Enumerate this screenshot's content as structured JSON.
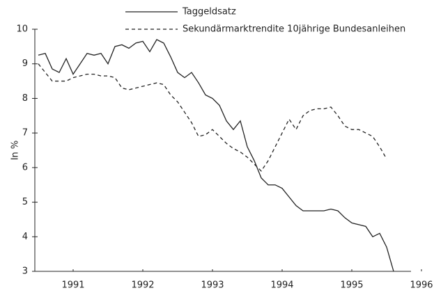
{
  "chart_data": {
    "type": "line",
    "ylabel": "In %",
    "x": [
      1990.5,
      1990.6,
      1990.7,
      1990.8,
      1990.9,
      1991.0,
      1991.1,
      1991.2,
      1991.3,
      1991.4,
      1991.5,
      1991.6,
      1991.7,
      1991.8,
      1991.9,
      1992.0,
      1992.1,
      1992.2,
      1992.3,
      1992.4,
      1992.5,
      1992.6,
      1992.7,
      1992.8,
      1992.9,
      1993.0,
      1993.1,
      1993.2,
      1993.3,
      1993.4,
      1993.5,
      1993.6,
      1993.7,
      1993.8,
      1993.9,
      1994.0,
      1994.1,
      1994.2,
      1994.3,
      1994.4,
      1994.5,
      1994.6,
      1994.7,
      1994.8,
      1994.9,
      1995.0,
      1995.1,
      1995.2,
      1995.3,
      1995.4,
      1995.5,
      1995.6
    ],
    "series": [
      {
        "name": "Taggeldsatz",
        "color": "#222222",
        "dash": false,
        "values": [
          9.25,
          9.3,
          8.85,
          8.75,
          9.15,
          8.7,
          9.0,
          9.3,
          9.25,
          9.3,
          9.0,
          9.5,
          9.55,
          9.45,
          9.6,
          9.65,
          9.35,
          9.7,
          9.6,
          9.2,
          8.75,
          8.6,
          8.75,
          8.45,
          8.1,
          8.0,
          7.8,
          7.35,
          7.1,
          7.35,
          6.6,
          6.2,
          5.7,
          5.5,
          5.5,
          5.4,
          5.15,
          4.9,
          4.75,
          4.75,
          4.75,
          4.75,
          4.8,
          4.75,
          4.55,
          4.4,
          4.35,
          4.3,
          4.0,
          4.1,
          3.7,
          3.0
        ]
      },
      {
        "name": "Sekundärmarktrendite 10jährige Bundesanleihen",
        "color": "#222222",
        "dash": true,
        "values": [
          9.0,
          8.75,
          8.5,
          8.5,
          8.5,
          8.6,
          8.65,
          8.7,
          8.7,
          8.65,
          8.65,
          8.6,
          8.3,
          8.25,
          8.3,
          8.35,
          8.4,
          8.45,
          8.4,
          8.1,
          7.9,
          7.6,
          7.3,
          6.9,
          6.95,
          7.1,
          6.9,
          6.7,
          6.55,
          6.45,
          6.3,
          6.1,
          5.9,
          6.2,
          6.6,
          7.0,
          7.4,
          7.1,
          7.5,
          7.65,
          7.7,
          7.7,
          7.75,
          7.5,
          7.2,
          7.1,
          7.1,
          7.0,
          6.9,
          6.6,
          6.25,
          null
        ]
      }
    ],
    "xlim": [
      1990.45,
      1996.0
    ],
    "xticks": [
      1991,
      1992,
      1993,
      1994,
      1995,
      1996
    ],
    "ylim": [
      3,
      10
    ],
    "yticks": [
      3,
      4,
      5,
      6,
      7,
      8,
      9,
      10
    ]
  }
}
